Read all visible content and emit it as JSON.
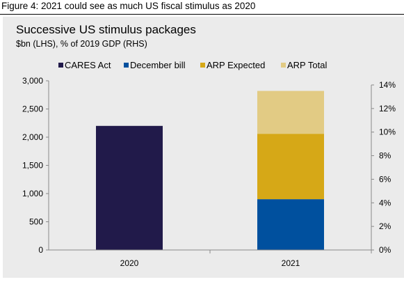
{
  "figure_caption": "Figure 4: 2021 could see as much US fiscal stimulus as 2020",
  "chart_data": {
    "type": "bar",
    "stacked": true,
    "title": "Successive US stimulus packages",
    "subtitle": "$bn (LHS), % of 2019 GDP (RHS)",
    "categories": [
      "2020",
      "2021"
    ],
    "series": [
      {
        "name": "CARES Act",
        "color": "#211a4a",
        "values": [
          2200,
          0
        ]
      },
      {
        "name": "December bill",
        "color": "#00509e",
        "values": [
          0,
          900
        ]
      },
      {
        "name": "ARP Expected",
        "color": "#d6a817",
        "values": [
          0,
          1160
        ]
      },
      {
        "name": "ARP Total",
        "color": "#e2cb84",
        "values": [
          0,
          760
        ]
      }
    ],
    "ylim_left": [
      0,
      3000
    ],
    "yticks_left": [
      "0",
      "500",
      "1,000",
      "1,500",
      "2,000",
      "2,500",
      "3,000"
    ],
    "ylim_right": [
      0,
      14
    ],
    "yticks_right": [
      "0%",
      "2%",
      "4%",
      "6%",
      "8%",
      "10%",
      "12%",
      "14%"
    ],
    "legend_position": "top",
    "grid": false
  }
}
